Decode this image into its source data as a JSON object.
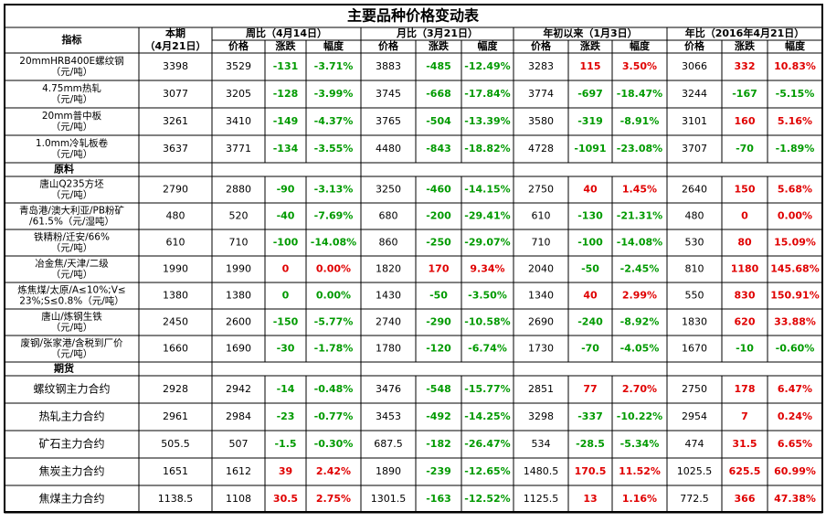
{
  "title": "主要品种价格变动表",
  "header": {
    "indicator": "指标",
    "current": [
      "本期",
      "（4月21日）"
    ],
    "groups": [
      "周比（4月14日）",
      "月比（3月21日）",
      "年初以来（1月3日）",
      "年比（2016年4月21日）"
    ],
    "sub": [
      "价格",
      "涨跌",
      "幅度"
    ]
  },
  "colors": {
    "up": "#e00000",
    "down": "#009a00"
  },
  "blocks": [
    {
      "rows": [
        {
          "label": [
            "20mmHRB400E螺纹钢",
            "（元/吨）"
          ],
          "cells": [
            "3398",
            "3529",
            "-131",
            "-3.71%",
            "3883",
            "-485",
            "-12.49%",
            "3283",
            "115",
            "3.50%",
            "3066",
            "332",
            "10.83%"
          ]
        },
        {
          "label": [
            "4.75mm热轧",
            "（元/吨）"
          ],
          "cells": [
            "3077",
            "3205",
            "-128",
            "-3.99%",
            "3745",
            "-668",
            "-17.84%",
            "3774",
            "-697",
            "-18.47%",
            "3244",
            "-167",
            "-5.15%"
          ]
        },
        {
          "label": [
            "20mm普中板",
            "（元/吨）"
          ],
          "cells": [
            "3261",
            "3410",
            "-149",
            "-4.37%",
            "3765",
            "-504",
            "-13.39%",
            "3580",
            "-319",
            "-8.91%",
            "3101",
            "160",
            "5.16%"
          ]
        },
        {
          "label": [
            "1.0mm冷轧板卷",
            "（元/吨）"
          ],
          "cells": [
            "3637",
            "3771",
            "-134",
            "-3.55%",
            "4480",
            "-843",
            "-18.82%",
            "4728",
            "-1091",
            "-23.08%",
            "3707",
            "-70",
            "-1.89%"
          ]
        }
      ]
    },
    {
      "name": "原料",
      "rows": [
        {
          "label": [
            "唐山Q235方坯",
            "（元/吨）"
          ],
          "cells": [
            "2790",
            "2880",
            "-90",
            "-3.13%",
            "3250",
            "-460",
            "-14.15%",
            "2750",
            "40",
            "1.45%",
            "2640",
            "150",
            "5.68%"
          ]
        },
        {
          "label": [
            "青岛港/澳大利亚/PB粉矿",
            "/61.5%（元/湿吨）"
          ],
          "cells": [
            "480",
            "520",
            "-40",
            "-7.69%",
            "680",
            "-200",
            "-29.41%",
            "610",
            "-130",
            "-21.31%",
            "480",
            "0",
            "0.00%"
          ]
        },
        {
          "label": [
            "铁精粉/迁安/66%",
            "（元/吨）"
          ],
          "cells": [
            "610",
            "710",
            "-100",
            "-14.08%",
            "860",
            "-250",
            "-29.07%",
            "710",
            "-100",
            "-14.08%",
            "530",
            "80",
            "15.09%"
          ]
        },
        {
          "label": [
            "冶金焦/天津/二级",
            "（元/吨）"
          ],
          "cells": [
            "1990",
            "1990",
            "0",
            "0.00%",
            "1820",
            "170",
            "9.34%",
            "2040",
            "-50",
            "-2.45%",
            "810",
            "1180",
            "145.68%"
          ]
        },
        {
          "label": [
            "炼焦煤/太原/A≤10%;V≤",
            "23%;S≤0.8%（元/吨）"
          ],
          "zero": "down",
          "cells": [
            "1380",
            "1380",
            "0",
            "0.00%",
            "1430",
            "-50",
            "-3.50%",
            "1340",
            "40",
            "2.99%",
            "550",
            "830",
            "150.91%"
          ]
        },
        {
          "label": [
            "唐山/炼钢生铁",
            "（元/吨）"
          ],
          "cells": [
            "2450",
            "2600",
            "-150",
            "-5.77%",
            "2740",
            "-290",
            "-10.58%",
            "2690",
            "-240",
            "-8.92%",
            "1830",
            "620",
            "33.88%"
          ]
        },
        {
          "label": [
            "废钢/张家港/含税到厂价",
            "（元/吨）"
          ],
          "cells": [
            "1660",
            "1690",
            "-30",
            "-1.78%",
            "1780",
            "-120",
            "-6.74%",
            "1730",
            "-70",
            "-4.05%",
            "1670",
            "-10",
            "-0.60%"
          ]
        }
      ]
    },
    {
      "name": "期货",
      "rows": [
        {
          "label": [
            "螺纹钢主力合约"
          ],
          "cells": [
            "2928",
            "2942",
            "-14",
            "-0.48%",
            "3476",
            "-548",
            "-15.77%",
            "2851",
            "77",
            "2.70%",
            "2750",
            "178",
            "6.47%"
          ]
        },
        {
          "label": [
            "热轧主力合约"
          ],
          "cells": [
            "2961",
            "2984",
            "-23",
            "-0.77%",
            "3453",
            "-492",
            "-14.25%",
            "3298",
            "-337",
            "-10.22%",
            "2954",
            "7",
            "0.24%"
          ]
        },
        {
          "label": [
            "矿石主力合约"
          ],
          "cells": [
            "505.5",
            "507",
            "-1.5",
            "-0.30%",
            "687.5",
            "-182",
            "-26.47%",
            "534",
            "-28.5",
            "-5.34%",
            "474",
            "31.5",
            "6.65%"
          ]
        },
        {
          "label": [
            "焦炭主力合约"
          ],
          "cells": [
            "1651",
            "1612",
            "39",
            "2.42%",
            "1890",
            "-239",
            "-12.65%",
            "1480.5",
            "170.5",
            "11.52%",
            "1025.5",
            "625.5",
            "60.99%"
          ]
        },
        {
          "label": [
            "焦煤主力合约"
          ],
          "cells": [
            "1138.5",
            "1108",
            "30.5",
            "2.75%",
            "1301.5",
            "-163",
            "-12.52%",
            "1125.5",
            "13",
            "1.16%",
            "772.5",
            "366",
            "47.38%"
          ]
        }
      ]
    }
  ]
}
